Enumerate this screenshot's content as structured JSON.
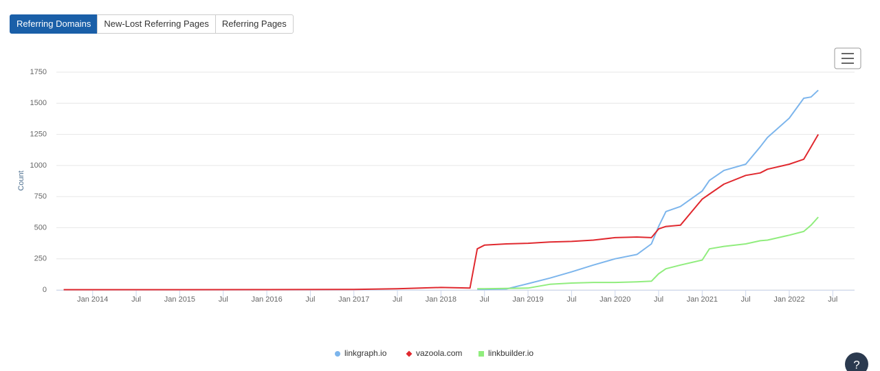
{
  "tabs": [
    {
      "label": "Referring Domains",
      "active": true
    },
    {
      "label": "New-Lost Referring Pages",
      "active": false
    },
    {
      "label": "Referring Pages",
      "active": false
    }
  ],
  "help_button": "?",
  "chart_data": {
    "type": "line",
    "y_label": "Count",
    "x": [
      "2013-09",
      "2014-01",
      "2015-01",
      "2016-01",
      "2017-01",
      "2017-07",
      "2018-01",
      "2018-05",
      "2018-06",
      "2018-07",
      "2018-10",
      "2019-01",
      "2019-04",
      "2019-07",
      "2019-10",
      "2020-01",
      "2020-04",
      "2020-06",
      "2020-07",
      "2020-08",
      "2020-10",
      "2021-01",
      "2021-02",
      "2021-04",
      "2021-07",
      "2021-09",
      "2021-10",
      "2022-01",
      "2022-03",
      "2022-04",
      "2022-05"
    ],
    "series": [
      {
        "name": "linkgraph.io",
        "color": "#7cb5ec",
        "marker": "circle",
        "values": [
          null,
          null,
          null,
          null,
          null,
          null,
          null,
          null,
          5,
          5,
          8,
          50,
          95,
          145,
          200,
          250,
          285,
          370,
          510,
          630,
          670,
          795,
          880,
          960,
          1010,
          1150,
          1225,
          1380,
          1540,
          1550,
          1605
        ]
      },
      {
        "name": "vazoola.com",
        "color": "#e0282e",
        "marker": "diamond",
        "values": [
          2,
          2,
          2,
          3,
          4,
          10,
          20,
          15,
          330,
          360,
          370,
          375,
          385,
          390,
          400,
          420,
          425,
          420,
          490,
          510,
          520,
          730,
          770,
          850,
          920,
          940,
          970,
          1010,
          1050,
          1150,
          1250
        ]
      },
      {
        "name": "linkbuilder.io",
        "color": "#90ed7d",
        "marker": "square",
        "values": [
          null,
          null,
          null,
          null,
          null,
          null,
          null,
          null,
          10,
          10,
          12,
          15,
          45,
          55,
          60,
          60,
          65,
          70,
          130,
          170,
          200,
          240,
          330,
          350,
          370,
          395,
          400,
          440,
          470,
          520,
          585
        ]
      }
    ],
    "xlim": [
      "2013-08",
      "2022-10"
    ],
    "xticks": [
      {
        "value": "2014-01",
        "label": "Jan 2014"
      },
      {
        "value": "2014-07",
        "label": "Jul"
      },
      {
        "value": "2015-01",
        "label": "Jan 2015"
      },
      {
        "value": "2015-07",
        "label": "Jul"
      },
      {
        "value": "2016-01",
        "label": "Jan 2016"
      },
      {
        "value": "2016-07",
        "label": "Jul"
      },
      {
        "value": "2017-01",
        "label": "Jan 2017"
      },
      {
        "value": "2017-07",
        "label": "Jul"
      },
      {
        "value": "2018-01",
        "label": "Jan 2018"
      },
      {
        "value": "2018-07",
        "label": "Jul"
      },
      {
        "value": "2019-01",
        "label": "Jan 2019"
      },
      {
        "value": "2019-07",
        "label": "Jul"
      },
      {
        "value": "2020-01",
        "label": "Jan 2020"
      },
      {
        "value": "2020-07",
        "label": "Jul"
      },
      {
        "value": "2021-01",
        "label": "Jan 2021"
      },
      {
        "value": "2021-07",
        "label": "Jul"
      },
      {
        "value": "2022-01",
        "label": "Jan 2022"
      },
      {
        "value": "2022-07",
        "label": "Jul"
      }
    ],
    "ylim": [
      0,
      1750
    ],
    "yticks": [
      0,
      250,
      500,
      750,
      1000,
      1250,
      1500,
      1750
    ],
    "grid": true,
    "legend": "bottom"
  }
}
